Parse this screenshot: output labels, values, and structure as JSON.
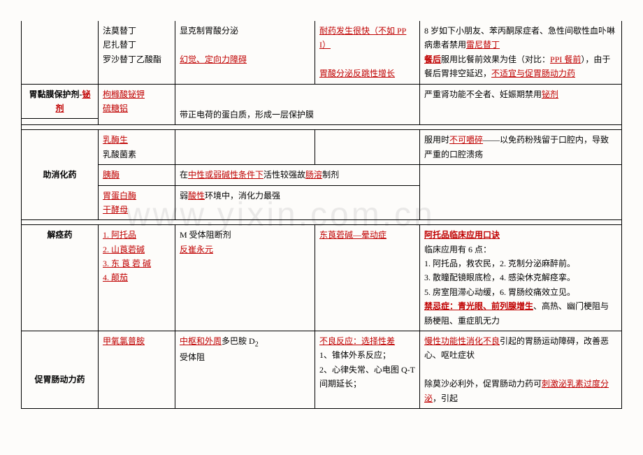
{
  "row1": {
    "col2": "法莫替丁\n尼扎替丁\n罗沙替丁乙酸酯",
    "col3_a": "显克制胃酸分泌",
    "col3_b": "幻觉、定向力障碍",
    "col4_a": "耐药发生很快（不如 PPI）",
    "col4_b": "胃酸分泌反跳性增长",
    "col5_a": "8 岁如下小朋友、苯丙酮尿症者、急性间歇性血卟啉病患者禁用",
    "col5_a_hl": "雷尼替丁",
    "col5_b1": "餐后",
    "col5_b2": "服用比餐前效果为佳（对比：",
    "col5_b_hl": "PPI 餐前",
    "col5_b3": "），由于餐后胃排空延迟，",
    "col5_b_hl2": "不适宜与促胃肠动力药"
  },
  "row2": {
    "col1_a": "胃黏膜保护剂-",
    "col1_b": "铋剂",
    "col2_a": "枸橼酸铋钾",
    "col2_b": "硫糖铝",
    "col3": "带正电荷的蛋白质，形成一层保护膜",
    "col5_a": "严重肾功能不全者、妊娠期禁用",
    "col5_b": "铋剂"
  },
  "row_dig_header": {
    "col1": "助消化药"
  },
  "row_dig1": {
    "col2_a": "乳酶生",
    "col2_b": "乳酸菌素",
    "col5_a": "服用时",
    "col5_hl": "不可嚼碎",
    "col5_b": "——以免药粉残留于口腔内，导致严重的口腔溃疡"
  },
  "row_dig2": {
    "col2": "胰酶",
    "col3_a": "在",
    "col3_hl": "中性或弱碱性条件下",
    "col3_b": "活性较强故",
    "col3_hl2": "肠溶",
    "col3_c": "制剂"
  },
  "row_dig3": {
    "col2_a": "胃蛋白酶",
    "col2_b": "干酵母",
    "col3_a": "弱",
    "col3_hl": "酸性",
    "col3_b": "环境中，消化力最强"
  },
  "row_spasm": {
    "col1": "解痉药",
    "col2_1": "1. 阿托品",
    "col2_2": "2. 山莨菪碱",
    "col2_3": "3. 东 莨 菪 碱",
    "col2_4": "4. 颠茄",
    "col3_a": "M 受体阻断剂",
    "col3_b": "反崔永元",
    "col4": "东莨菪碱—晕动症",
    "col5_t": "阿托品临床应用口诀",
    "col5_a": "临床应用有 6 点：",
    "col5_b": "1. 阿托品，救农民，2. 克制分泌麻醉前。",
    "col5_c": "3. 散瞳配镜眼底检，4. 感染休克解痉挛。",
    "col5_d": "5. 房室阻滞心动缓，6. 胃肠绞痛效立见。",
    "col5_e1": "禁忌症：青光眼、前列腺增生",
    "col5_e2": "、高热、幽门梗阻与肠梗阻、重症肌无力"
  },
  "row_mot": {
    "col1": "促胃肠动力药",
    "col2": "甲氧氯普胺",
    "col3_a": "中枢和外周",
    "col3_b": "多巴胺 D",
    "col3_c": "受体阻",
    "col4_t": "不良反应：选择性差",
    "col4_a": "1、锥体外系反应；",
    "col4_b": "2、心律失常、心电图 Q-T 间期延长；",
    "col5_t": "慢性功能性消化不良",
    "col5_a": "引起的胃肠运动障碍，改善恶心、呕吐症状",
    "col5_b": "除莫沙必利外，促胃肠动力药可",
    "col5_hl": "刺激泌乳素过度分泌",
    "col5_c": "，引起"
  }
}
